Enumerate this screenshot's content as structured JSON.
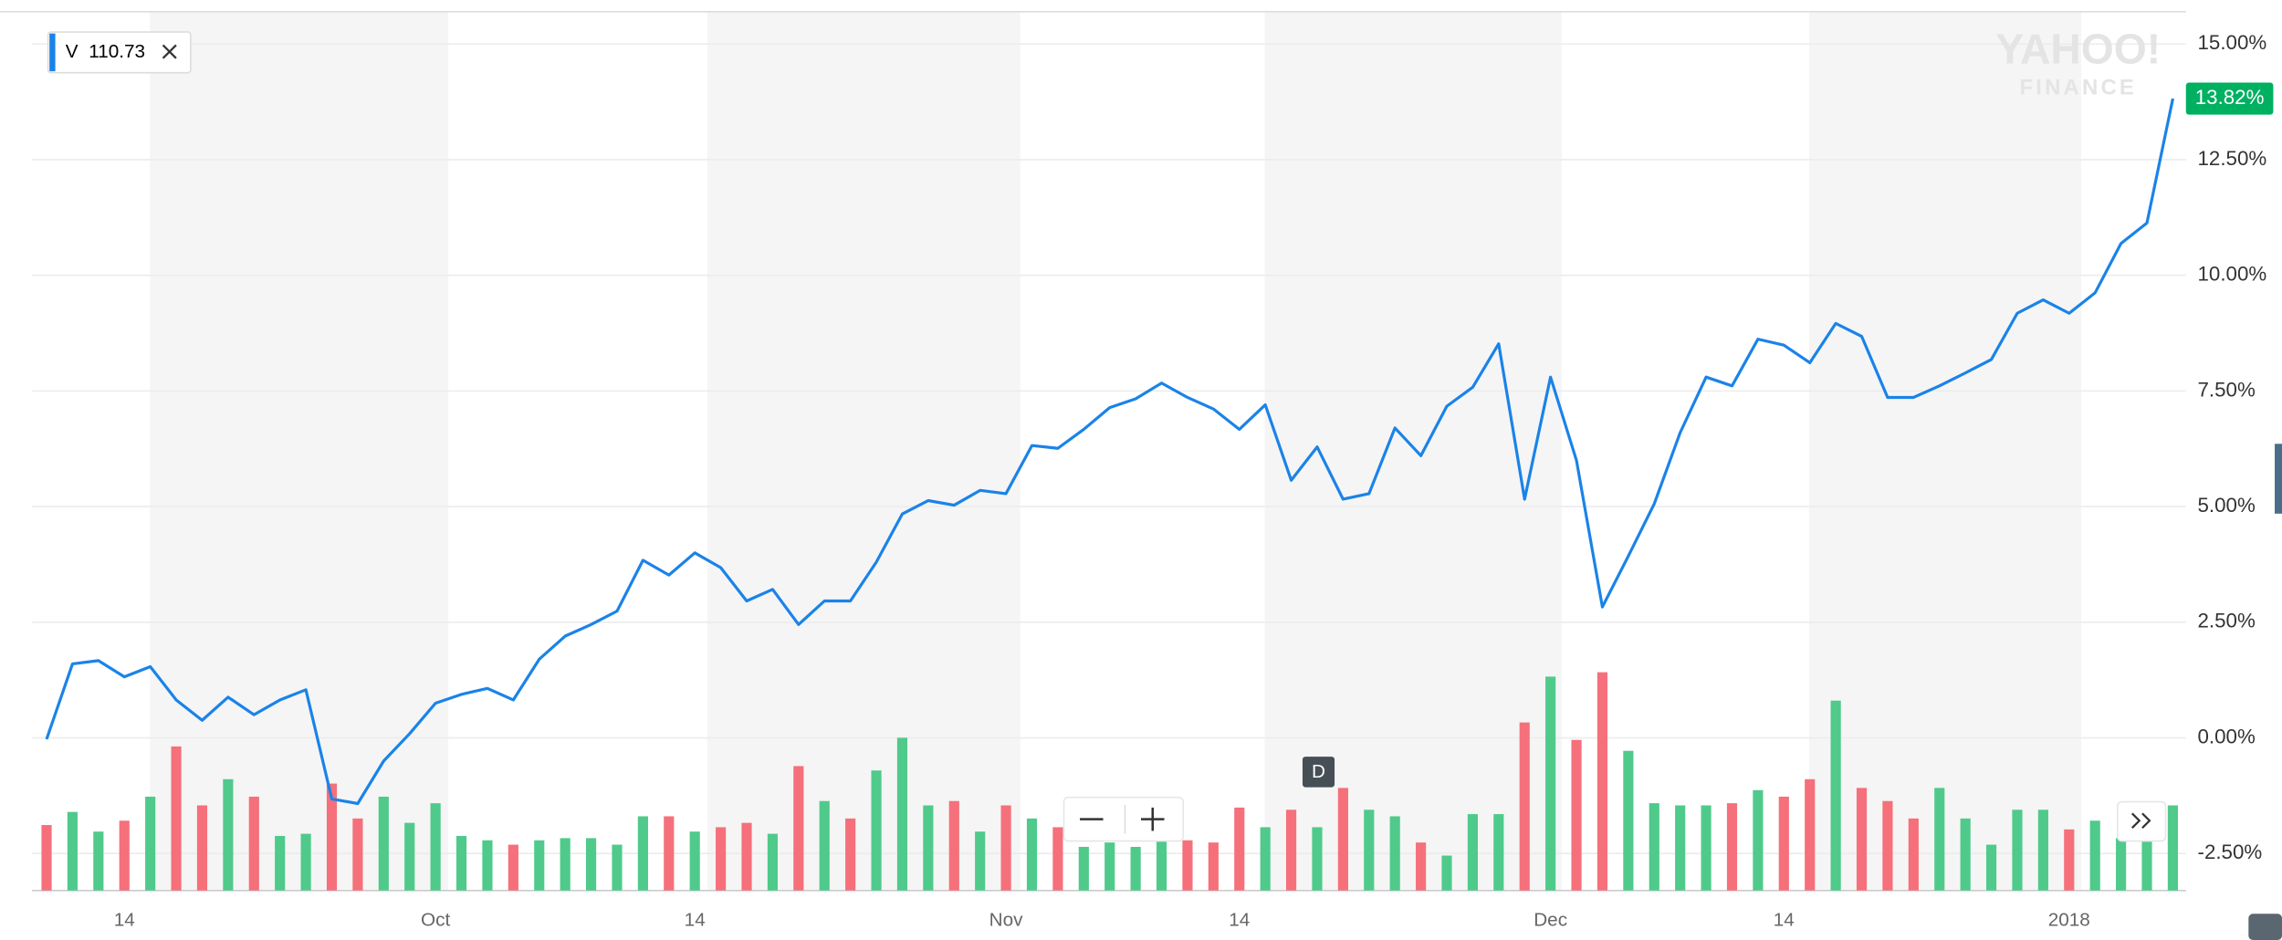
{
  "chart_data": {
    "type": "line",
    "categories": [
      null,
      null,
      null,
      "14",
      null,
      null,
      null,
      null,
      null,
      null,
      null,
      null,
      null,
      null,
      null,
      "Oct",
      null,
      null,
      null,
      null,
      null,
      null,
      null,
      null,
      null,
      "14",
      null,
      null,
      null,
      null,
      null,
      null,
      null,
      null,
      null,
      null,
      null,
      "Nov",
      null,
      null,
      null,
      null,
      null,
      null,
      null,
      null,
      "14",
      null,
      null,
      null,
      null,
      null,
      null,
      null,
      null,
      null,
      null,
      null,
      "Dec",
      null,
      null,
      null,
      null,
      null,
      null,
      null,
      null,
      "14",
      null,
      null,
      null,
      null,
      null,
      null,
      null,
      null,
      null,
      null,
      "2018",
      null,
      null,
      null,
      null
    ],
    "series": [
      {
        "name": "V",
        "color": "#1a83e8",
        "values": [
          -0.03,
          1.6,
          1.67,
          1.32,
          1.54,
          0.82,
          0.38,
          0.88,
          0.5,
          0.82,
          1.04,
          -1.32,
          -1.42,
          -0.5,
          0.09,
          0.75,
          0.94,
          1.07,
          0.82,
          1.7,
          2.2,
          2.45,
          2.74,
          3.84,
          3.52,
          4.0,
          3.68,
          2.96,
          3.21,
          2.45,
          2.96,
          2.96,
          3.8,
          4.84,
          5.13,
          5.03,
          5.35,
          5.28,
          6.32,
          6.26,
          6.67,
          7.14,
          7.33,
          7.67,
          7.36,
          7.11,
          6.67,
          7.2,
          5.57,
          6.29,
          5.16,
          5.28,
          6.7,
          6.1,
          7.17,
          7.58,
          8.52,
          5.16,
          7.8,
          6.0,
          2.83,
          3.93,
          5.06,
          6.6,
          7.8,
          7.61,
          8.62,
          8.49,
          8.11,
          8.96,
          8.68,
          7.36,
          7.36,
          7.61,
          7.89,
          8.18,
          9.18,
          9.47,
          9.18,
          9.62,
          10.69,
          11.13,
          13.82
        ],
        "value_labels": [
          null,
          null,
          null,
          null,
          null,
          null,
          null,
          null,
          null,
          null,
          null,
          null,
          null,
          null,
          null,
          null,
          null,
          null,
          null,
          null,
          null,
          null,
          null,
          null,
          null,
          null,
          null,
          null,
          null,
          null,
          null,
          null,
          null,
          null,
          null,
          null,
          null,
          null,
          null,
          null,
          null,
          null,
          null,
          null,
          null,
          null,
          null,
          null,
          null,
          null,
          null,
          null,
          null,
          null,
          null,
          null,
          null,
          null,
          null,
          null,
          null,
          null,
          null,
          null,
          null,
          null,
          null,
          null,
          null,
          null,
          null,
          null,
          null,
          null,
          null,
          null,
          null,
          null,
          null,
          null,
          null,
          null,
          "13.82%"
        ],
        "value_label_color": "#00b061"
      }
    ],
    "legend_price": 110.73,
    "volume": {
      "axis": "y2",
      "values": [
        30,
        36,
        27,
        32,
        43,
        66,
        39,
        51,
        43,
        25,
        26,
        49,
        33,
        43,
        31,
        40,
        25,
        23,
        21,
        23,
        24,
        24,
        21,
        34,
        34,
        27,
        29,
        31,
        26,
        57,
        41,
        33,
        55,
        70,
        39,
        41,
        27,
        39,
        33,
        29,
        20,
        22,
        20,
        25,
        23,
        22,
        38,
        29,
        37,
        29,
        47,
        37,
        34,
        22,
        16,
        35,
        35,
        77,
        98,
        69,
        100,
        64,
        40,
        39,
        39,
        40,
        46,
        43,
        51,
        87,
        47,
        41,
        33,
        47,
        33,
        21,
        37,
        37,
        28,
        32,
        24,
        25,
        39
      ],
      "colors": [
        "#f5707a",
        "#4fca8b",
        "#4fca8b",
        "#f5707a",
        "#4fca8b",
        "#f5707a",
        "#f5707a",
        "#4fca8b",
        "#f5707a",
        "#4fca8b",
        "#4fca8b",
        "#f5707a",
        "#f5707a",
        "#4fca8b",
        "#4fca8b",
        "#4fca8b",
        "#4fca8b",
        "#4fca8b",
        "#f5707a",
        "#4fca8b",
        "#4fca8b",
        "#4fca8b",
        "#4fca8b",
        "#4fca8b",
        "#f5707a",
        "#4fca8b",
        "#f5707a",
        "#f5707a",
        "#4fca8b",
        "#f5707a",
        "#4fca8b",
        "#f5707a",
        "#4fca8b",
        "#4fca8b",
        "#4fca8b",
        "#f5707a",
        "#4fca8b",
        "#f5707a",
        "#4fca8b",
        "#f5707a",
        "#4fca8b",
        "#4fca8b",
        "#4fca8b",
        "#4fca8b",
        "#f5707a",
        "#f5707a",
        "#f5707a",
        "#4fca8b",
        "#f5707a",
        "#4fca8b",
        "#f5707a",
        "#4fca8b",
        "#4fca8b",
        "#f5707a",
        "#4fca8b",
        "#4fca8b",
        "#4fca8b",
        "#f5707a",
        "#4fca8b",
        "#f5707a",
        "#f5707a",
        "#4fca8b",
        "#4fca8b",
        "#4fca8b",
        "#4fca8b",
        "#f5707a",
        "#4fca8b",
        "#f5707a",
        "#f5707a",
        "#4fca8b",
        "#f5707a",
        "#f5707a",
        "#f5707a",
        "#4fca8b",
        "#4fca8b",
        "#4fca8b",
        "#4fca8b",
        "#4fca8b",
        "#f5707a",
        "#4fca8b",
        "#4fca8b",
        "#4fca8b",
        "#4fca8b"
      ]
    },
    "ylim": [
      -3.3,
      15.7
    ],
    "yticks": [
      {
        "value": -2.5,
        "label": "-2.50%"
      },
      {
        "value": 0,
        "label": "0.00%"
      },
      {
        "value": 2.5,
        "label": "2.50%"
      },
      {
        "value": 5,
        "label": "5.00%"
      },
      {
        "value": 7.5,
        "label": "7.50%"
      },
      {
        "value": 10,
        "label": "10.00%"
      },
      {
        "value": 12.5,
        "label": "12.50%"
      },
      {
        "value": 15,
        "label": "15.00%"
      }
    ],
    "y2lim": [
      0,
      100
    ],
    "grid": true,
    "flag": "D",
    "watermark": [
      "YAHOO!",
      "FINANCE"
    ]
  }
}
